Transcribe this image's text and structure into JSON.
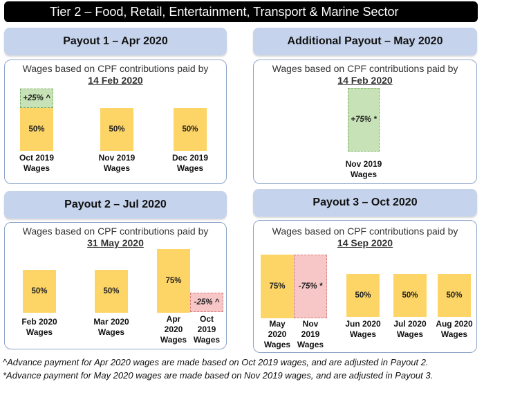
{
  "title": "Tier 2 – Food, Retail, Entertainment, Transport & Marine Sector",
  "panels": {
    "p1": {
      "header": "Payout 1 – Apr 2020",
      "sub1": "Wages based on CPF contributions paid by",
      "sub2": "14 Feb 2020",
      "bars": [
        "50%",
        "50%",
        "50%"
      ],
      "extra": "+25% ^",
      "labels": [
        [
          "Oct 2019",
          "Wages"
        ],
        [
          "Nov 2019",
          "Wages"
        ],
        [
          "Dec 2019",
          "Wages"
        ]
      ]
    },
    "add": {
      "header": "Additional Payout – May 2020",
      "sub1": "Wages based on CPF contributions paid by",
      "sub2": "14 Feb 2020",
      "bar": "+75% *",
      "label": [
        "Nov 2019",
        "Wages"
      ]
    },
    "p2": {
      "header": "Payout 2 – Jul 2020",
      "sub1": "Wages based on CPF contributions paid by",
      "sub2": "31 May 2020",
      "bars": [
        "50%",
        "50%",
        "75%",
        "-25% ^"
      ],
      "labels": [
        [
          "Feb 2020",
          "Wages"
        ],
        [
          "Mar 2020",
          "Wages"
        ],
        [
          "Apr",
          "2020",
          "Wages"
        ],
        [
          "Oct",
          "2019",
          "Wages"
        ]
      ]
    },
    "p3": {
      "header": "Payout 3 – Oct 2020",
      "sub1": "Wages based on CPF contributions paid by",
      "sub2": "14 Sep 2020",
      "bars": [
        "75%",
        "-75% *",
        "50%",
        "50%",
        "50%"
      ],
      "labels": [
        [
          "May",
          "2020",
          "Wages"
        ],
        [
          "Nov",
          "2019",
          "Wages"
        ],
        [
          "Jun 2020",
          "Wages"
        ],
        [
          "Jul 2020",
          "Wages"
        ],
        [
          "Aug 2020",
          "Wages"
        ]
      ]
    }
  },
  "footnotes": [
    "^Advance payment for Apr 2020 wages are made based on Oct 2019 wages, and are adjusted in Payout 2.",
    "*Advance payment for May 2020 wages are made based on Nov 2019 wages, and are adjusted in Payout 3."
  ],
  "colors": {
    "yellow": "#fdd566",
    "green": "#c7e2b6",
    "red": "#f7c6c6",
    "header": "#c5d3ec"
  }
}
